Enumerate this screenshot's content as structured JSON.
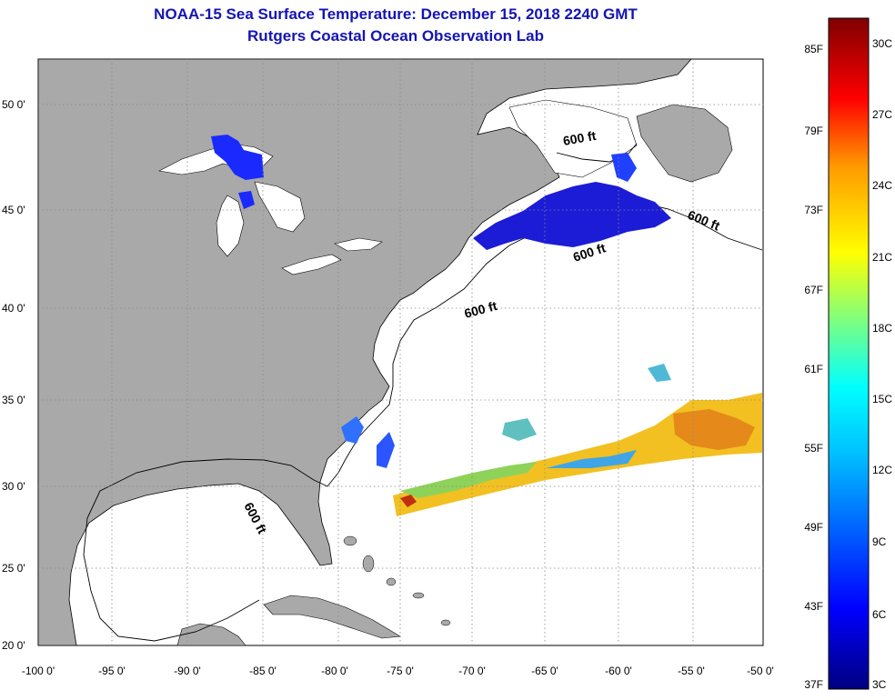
{
  "header": {
    "title": "NOAA-15 Sea Surface Temperature:  December 15, 2018 2240 GMT",
    "subtitle": "Rutgers Coastal Ocean Observation Lab"
  },
  "map": {
    "lat_labels": [
      "50 0'",
      "45 0'",
      "40 0'",
      "35 0'",
      "30 0'",
      "25 0'",
      "20 0'"
    ],
    "lon_labels": [
      "-100 0'",
      "-95 0'",
      "-90 0'",
      "-85 0'",
      "-80 0'",
      "-75 0'",
      "-70 0'",
      "-65 0'",
      "-60 0'",
      "-55 0'",
      "-50 0'"
    ],
    "depth_contour_labels": [
      "600 ft",
      "600 ft",
      "600 ft",
      "600 ft",
      "600 ft"
    ],
    "land_color": "#a9a9a9",
    "ocean_color": "#ffffff"
  },
  "colorbar": {
    "fahrenheit_labels": [
      "85F",
      "79F",
      "73F",
      "67F",
      "61F",
      "55F",
      "49F",
      "43F",
      "37F"
    ],
    "celsius_labels": [
      "30C",
      "27C",
      "24C",
      "21C",
      "18C",
      "15C",
      "12C",
      "9C",
      "6C",
      "3C"
    ],
    "colors": [
      "#00007f",
      "#0000ff",
      "#007fff",
      "#00ffff",
      "#7fff7f",
      "#ffff00",
      "#ff7f00",
      "#ff0000",
      "#7f0000"
    ]
  }
}
